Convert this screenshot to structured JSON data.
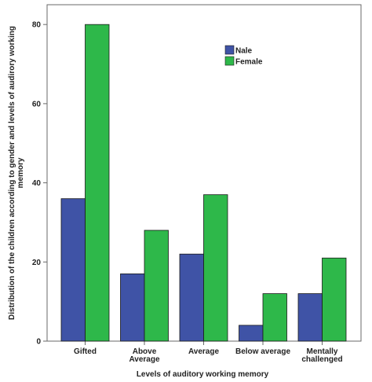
{
  "chart_data": {
    "type": "bar",
    "categories": [
      "Gifted",
      "Above Average",
      "Average",
      "Below average",
      "Mentally challenged"
    ],
    "category_lines": [
      [
        "Gifted"
      ],
      [
        "Above",
        "Average"
      ],
      [
        "Average"
      ],
      [
        "Below average"
      ],
      [
        "Mentally",
        "challenged"
      ]
    ],
    "series": [
      {
        "name": "Nale",
        "values": [
          36,
          17,
          22,
          4,
          12
        ],
        "color": "#3f53a6"
      },
      {
        "name": "Female",
        "values": [
          80,
          28,
          37,
          12,
          21
        ],
        "color": "#2eb84a"
      }
    ],
    "xlabel": "Levels of auditory working memory",
    "ylabel_lines": [
      "Distribution of the children according to gender and levels of audirory working",
      "memory"
    ],
    "ylim": [
      0,
      85
    ],
    "yticks": [
      0,
      20,
      40,
      60,
      80
    ],
    "legend_position": "top-right",
    "grid": false
  }
}
